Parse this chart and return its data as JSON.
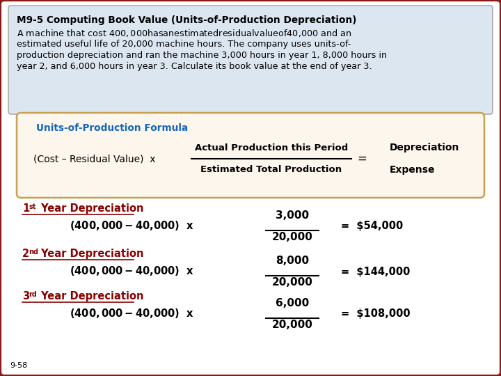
{
  "bg_color": "#ffffff",
  "outer_border_color": "#8b1a1a",
  "title_box_bg": "#dce6f1",
  "title_box_border": "#aaaaaa",
  "title_bold": "M9-5 Computing Book Value (Units-of-Production Depreciation)",
  "title_line1": "A machine that cost $400,000 has an estimated residual value of $40,000 and an",
  "title_line2": "estimated useful life of 20,000 machine hours. The company uses units-of-",
  "title_line3": "production depreciation and ran the machine 3,000 hours in year 1, 8,000 hours in",
  "title_line4": "year 2, and 6,000 hours in year 3. Calculate its book value at the end of year 3.",
  "formula_box_bg": "#fdf6ed",
  "formula_box_border": "#c8a050",
  "formula_label": "Units-of-Production Formula",
  "formula_label_color": "#1565c0",
  "formula_left": "(Cost – Residual Value)  x",
  "formula_num": "Actual Production this Period",
  "formula_den": "Estimated Total Production",
  "formula_eq": "=",
  "formula_right_top": "Depreciation",
  "formula_right_bot": "Expense",
  "dark_red": "#8b0000",
  "calc_line": "($400,000 - $40,000)  x",
  "year1_num": "3,000",
  "year2_num": "8,000",
  "year3_num": "6,000",
  "denom": "20,000",
  "result1": "=  $54,000",
  "result2": "=  $144,000",
  "result3": "=  $108,000",
  "footnote": "9-58"
}
